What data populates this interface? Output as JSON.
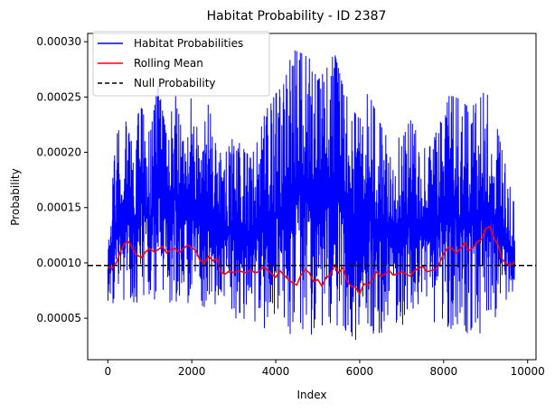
{
  "chart_data": {
    "type": "line",
    "title": "Habitat Probability - ID 2387",
    "xlabel": "Index",
    "ylabel": "Probability",
    "xlim": [
      -480,
      10200
    ],
    "ylim": [
      1.25e-05,
      0.0003075
    ],
    "x_ticks": [
      0,
      2000,
      4000,
      6000,
      8000,
      10000
    ],
    "x_tick_labels": [
      "0",
      "2000",
      "4000",
      "6000",
      "8000",
      "10000"
    ],
    "y_ticks": [
      5e-05,
      0.0001,
      0.00015,
      0.0002,
      0.00025,
      0.0003
    ],
    "y_tick_labels": [
      "0.00005",
      "0.00010",
      "0.00015",
      "0.00020",
      "0.00025",
      "0.00030"
    ],
    "grid": false,
    "legend_position": "upper-left",
    "series": [
      {
        "name": "Habitat Probabilities",
        "color": "#0000ff",
        "style": "solid",
        "x_range": [
          0,
          9700
        ],
        "envelope": {
          "x": [
            0,
            200,
            400,
            600,
            800,
            1000,
            1200,
            1400,
            1600,
            1800,
            2000,
            2200,
            2400,
            2600,
            2800,
            3000,
            3200,
            3400,
            3600,
            3800,
            4000,
            4200,
            4400,
            4600,
            4800,
            5000,
            5200,
            5400,
            5600,
            5800,
            6000,
            6200,
            6400,
            6600,
            6800,
            7000,
            7200,
            7400,
            7600,
            7800,
            8000,
            8200,
            8400,
            8600,
            8800,
            9000,
            9200,
            9400,
            9600,
            9700
          ],
          "upper": [
            0.000123,
            0.000215,
            0.000232,
            0.000205,
            0.000254,
            0.000215,
            0.000262,
            0.000215,
            0.000255,
            0.00021,
            0.000253,
            0.000205,
            0.000245,
            0.0002,
            0.000199,
            0.000215,
            0.000205,
            0.000195,
            0.000221,
            0.00024,
            0.000253,
            0.000262,
            0.000293,
            0.00029,
            0.000285,
            0.000265,
            0.000275,
            0.00029,
            0.00026,
            0.00024,
            0.00023,
            0.000255,
            0.000235,
            0.000215,
            0.00022,
            0.00021,
            0.00023,
            0.000215,
            0.0002,
            0.000215,
            0.000251,
            0.000251,
            0.000248,
            0.00024,
            0.000245,
            0.000257,
            0.000235,
            0.0002,
            0.000168,
            0.00015
          ],
          "lower": [
            6.5e-05,
            5.5e-05,
            6e-05,
            5.8e-05,
            6.2e-05,
            6e-05,
            6.1e-05,
            6.2e-05,
            6.5e-05,
            6.2e-05,
            6.3e-05,
            6e-05,
            6e-05,
            5.8e-05,
            5e-05,
            5e-05,
            4.8e-05,
            4.5e-05,
            4.2e-05,
            4e-05,
            3.8e-05,
            3.6e-05,
            3.4e-05,
            3.4e-05,
            3.3e-05,
            3.4e-05,
            3.2e-05,
            3.5e-05,
            3.2e-05,
            3e-05,
            2.8e-05,
            3e-05,
            3.5e-05,
            3.8e-05,
            4e-05,
            4.3e-05,
            4.5e-05,
            4.8e-05,
            5e-05,
            4.5e-05,
            4e-05,
            3.5e-05,
            2.8e-05,
            3e-05,
            3.2e-05,
            4e-05,
            5e-05,
            5.5e-05,
            5.8e-05,
            6e-05
          ]
        }
      },
      {
        "name": "Rolling Mean",
        "color": "#ff0000",
        "style": "solid",
        "x": [
          0,
          100,
          200,
          300,
          400,
          500,
          600,
          700,
          800,
          900,
          1000,
          1100,
          1200,
          1300,
          1400,
          1500,
          1600,
          1700,
          1800,
          1900,
          2000,
          2100,
          2200,
          2300,
          2400,
          2500,
          2600,
          2700,
          2800,
          2900,
          3000,
          3100,
          3200,
          3300,
          3400,
          3500,
          3600,
          3700,
          3800,
          3900,
          4000,
          4100,
          4200,
          4300,
          4400,
          4500,
          4600,
          4700,
          4800,
          4900,
          5000,
          5100,
          5200,
          5300,
          5400,
          5500,
          5600,
          5700,
          5800,
          5900,
          6000,
          6100,
          6200,
          6300,
          6400,
          6500,
          6600,
          6700,
          6800,
          6900,
          7000,
          7100,
          7200,
          7300,
          7400,
          7500,
          7600,
          7700,
          7800,
          7900,
          8000,
          8100,
          8200,
          8300,
          8400,
          8500,
          8600,
          8700,
          8800,
          8900,
          9000,
          9100,
          9200,
          9300,
          9400,
          9500,
          9600,
          9700
        ],
        "y": [
          9.7e-05,
          9.5e-05,
          0.0001,
          0.00011,
          0.000118,
          0.000119,
          0.000112,
          0.000107,
          0.000105,
          0.00011,
          0.000113,
          0.00011,
          0.000112,
          0.000115,
          0.000109,
          0.000112,
          0.000113,
          0.000109,
          0.000113,
          0.000116,
          0.000114,
          0.000111,
          0.000102,
          0.0001,
          0.000106,
          0.000102,
          0.000104,
          9.1e-05,
          9e-05,
          9.3e-05,
          9.1e-05,
          9.3e-05,
          9.2e-05,
          9.1e-05,
          9.4e-05,
          9.1e-05,
          9.2e-05,
          9.6e-05,
          9.4e-05,
          9e-05,
          8.7e-05,
          9.3e-05,
          8.9e-05,
          8.5e-05,
          8.2e-05,
          8e-05,
          8.9e-05,
          9.4e-05,
          9.1e-05,
          8.3e-05,
          8.5e-05,
          7.9e-05,
          8.7e-05,
          8.9e-05,
          9.8e-05,
          9.1e-05,
          9.6e-05,
          8.3e-05,
          7.9e-05,
          7.8e-05,
          7.2e-05,
          8.1e-05,
          8e-05,
          8.5e-05,
          9.2e-05,
          8.8e-05,
          9e-05,
          9.3e-05,
          8.9e-05,
          9e-05,
          9.2e-05,
          9e-05,
          8.8e-05,
          9.3e-05,
          9.5e-05,
          9.7e-05,
          9.2e-05,
          9.3e-05,
          9.4e-05,
          0.0001,
          0.000108,
          0.000114,
          0.000113,
          0.000109,
          0.000113,
          0.000118,
          0.000111,
          0.000114,
          0.000119,
          0.000121,
          0.000131,
          0.000133,
          0.000122,
          0.000116,
          0.000103,
          9.9e-05,
          9.8e-05,
          0.000101
        ]
      },
      {
        "name": "Null Probability",
        "color": "#000000",
        "style": "dashed",
        "y_constant": 9.77e-05
      }
    ]
  }
}
